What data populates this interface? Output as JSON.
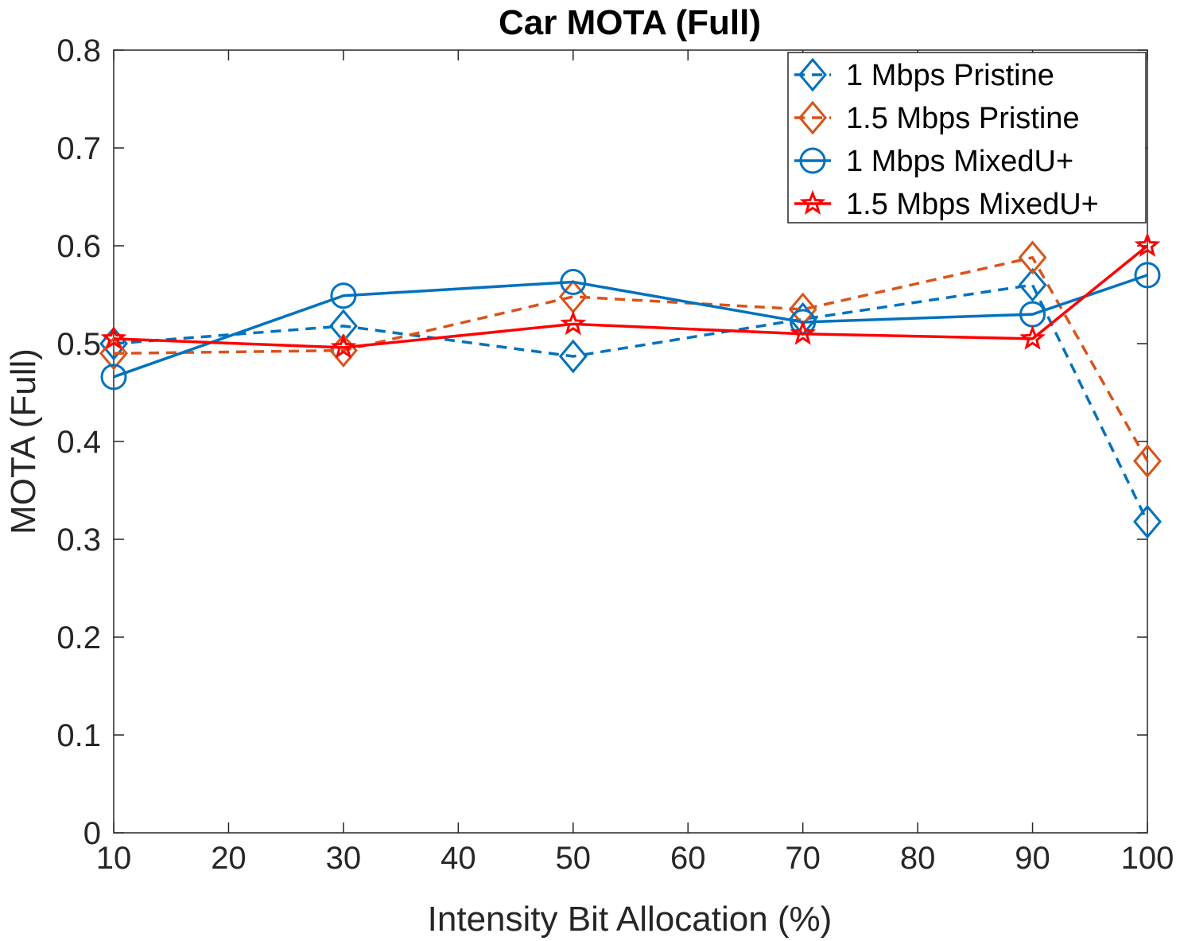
{
  "chart_data": {
    "type": "line",
    "title": "Car MOTA (Full)",
    "xlabel": "Intensity Bit Allocation (%)",
    "ylabel": "MOTA (Full)",
    "xlim": [
      10,
      100
    ],
    "ylim": [
      0,
      0.8
    ],
    "xticks": [
      10,
      20,
      30,
      40,
      50,
      60,
      70,
      80,
      90,
      100
    ],
    "xtick_labels": [
      "10",
      "20",
      "30",
      "40",
      "50",
      "60",
      "70",
      "80",
      "90",
      "100"
    ],
    "yticks": [
      0,
      0.1,
      0.2,
      0.3,
      0.4,
      0.5,
      0.6,
      0.7,
      0.8
    ],
    "ytick_labels": [
      "0",
      "0.1",
      "0.2",
      "0.3",
      "0.4",
      "0.5",
      "0.6",
      "0.7",
      "0.8"
    ],
    "grid": false,
    "legend_position": "top-right",
    "x": [
      10,
      30,
      50,
      70,
      90,
      100
    ],
    "series": [
      {
        "name": "1 Mbps Pristine",
        "color": "#0072BD",
        "line_style": "dashed",
        "marker": "diamond",
        "values": [
          0.5,
          0.518,
          0.487,
          0.525,
          0.56,
          0.318
        ]
      },
      {
        "name": "1.5 Mbps Pristine",
        "color": "#D95319",
        "line_style": "dashed",
        "marker": "diamond",
        "values": [
          0.49,
          0.493,
          0.548,
          0.535,
          0.588,
          0.38
        ]
      },
      {
        "name": "1 Mbps MixedU+",
        "color": "#0072BD",
        "line_style": "solid",
        "marker": "circle",
        "values": [
          0.466,
          0.549,
          0.563,
          0.522,
          0.53,
          0.57
        ]
      },
      {
        "name": "1.5 Mbps MixedU+",
        "color": "#FF0000",
        "line_style": "solid",
        "marker": "star",
        "values": [
          0.505,
          0.496,
          0.52,
          0.51,
          0.505,
          0.6
        ]
      }
    ]
  }
}
